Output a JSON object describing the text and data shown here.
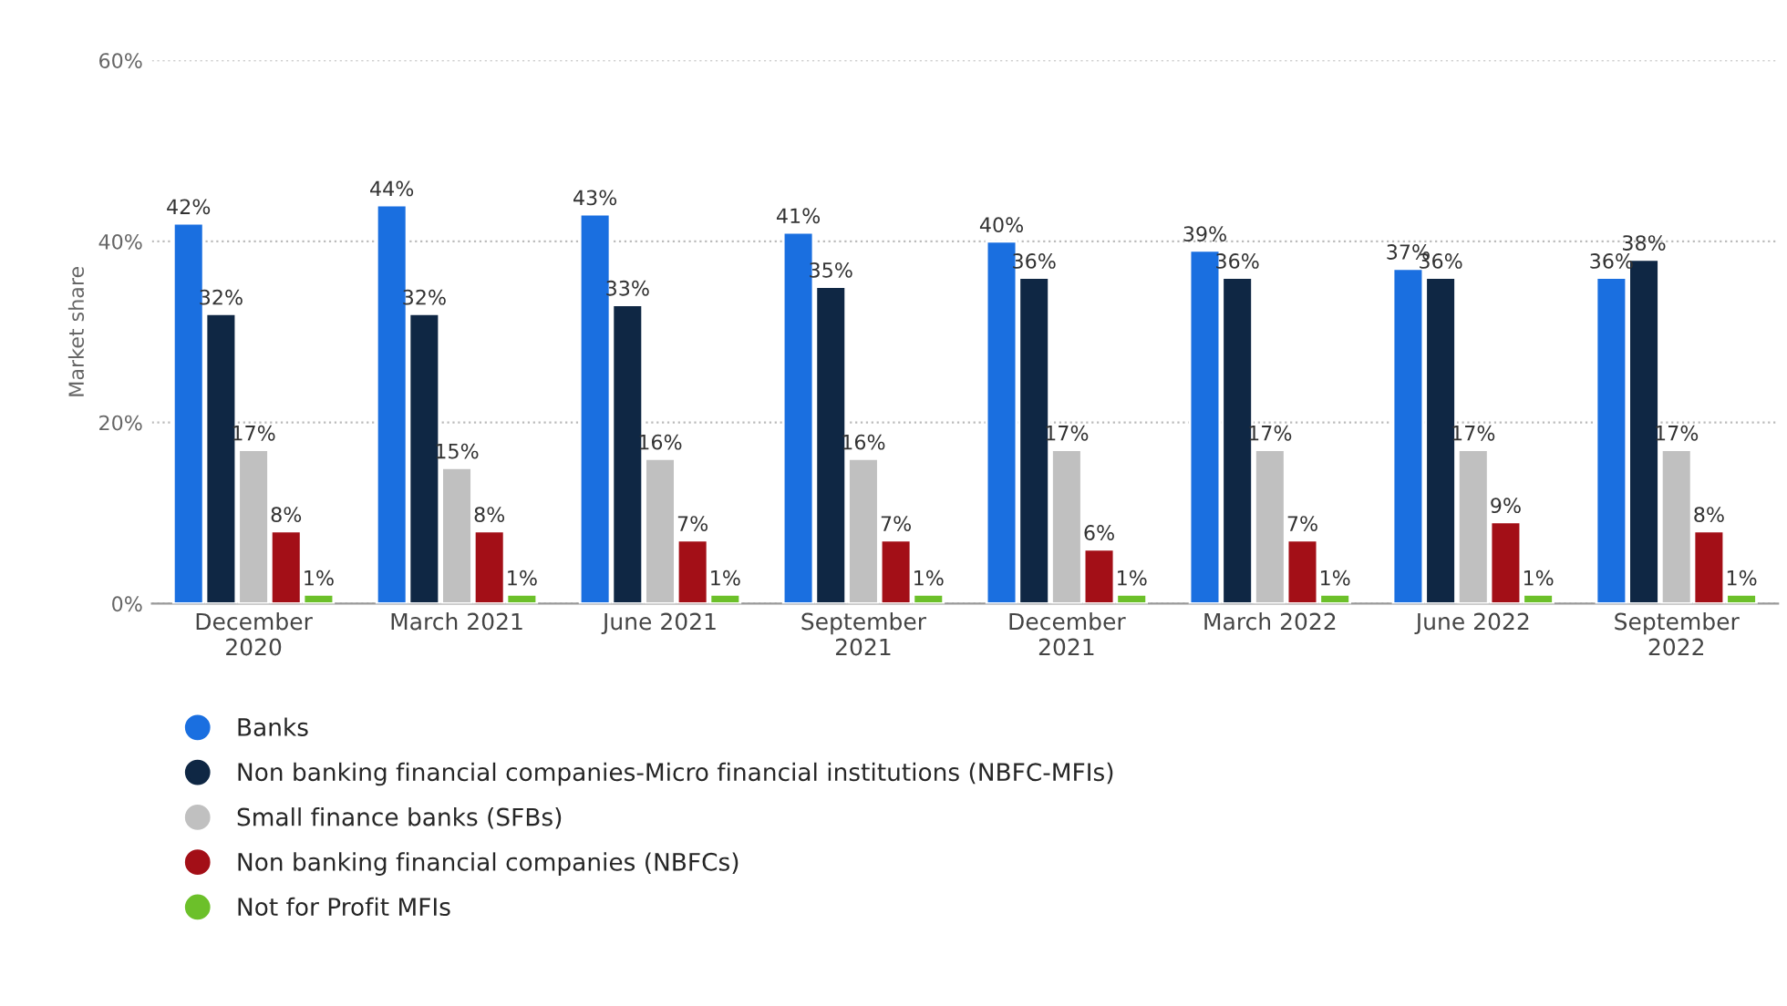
{
  "chart_data": {
    "type": "bar",
    "categories": [
      "December\n2020",
      "March 2021",
      "June 2021",
      "September\n2021",
      "December\n2021",
      "March 2022",
      "June 2022",
      "September\n2022"
    ],
    "ylabel": "Market share",
    "ylim": [
      0,
      60
    ],
    "yticks": [
      {
        "value": 0,
        "label": "0%"
      },
      {
        "value": 20,
        "label": "20%"
      },
      {
        "value": 40,
        "label": "40%"
      },
      {
        "value": 60,
        "label": "60%"
      }
    ],
    "grid": "y",
    "legend": "bottom left",
    "series": [
      {
        "name": "Banks",
        "color": "#1a6fe0",
        "values": [
          42,
          44,
          43,
          41,
          40,
          39,
          37,
          36
        ],
        "value_labels": [
          "42%",
          "44%",
          "43%",
          "41%",
          "40%",
          "39%",
          "37%",
          "36%"
        ]
      },
      {
        "name": "Non banking financial companies-Micro financial institutions (NBFC-MFIs)",
        "color": "#0f2744",
        "values": [
          32,
          32,
          33,
          35,
          36,
          36,
          36,
          38
        ],
        "value_labels": [
          "32%",
          "32%",
          "33%",
          "35%",
          "36%",
          "36%",
          "36%",
          "38%"
        ]
      },
      {
        "name": "Small finance banks (SFBs)",
        "color": "#c0c0c0",
        "values": [
          17,
          15,
          16,
          16,
          17,
          17,
          17,
          17
        ],
        "value_labels": [
          "17%",
          "15%",
          "16%",
          "16%",
          "17%",
          "17%",
          "17%",
          "17%"
        ]
      },
      {
        "name": "Non banking financial companies (NBFCs)",
        "color": "#a30f17",
        "values": [
          8,
          8,
          7,
          7,
          6,
          7,
          9,
          8
        ],
        "value_labels": [
          "8%",
          "8%",
          "7%",
          "7%",
          "6%",
          "7%",
          "9%",
          "8%"
        ]
      },
      {
        "name": "Not for Profit MFIs",
        "color": "#6cc02a",
        "values": [
          1,
          1,
          1,
          1,
          1,
          1,
          1,
          1
        ],
        "value_labels": [
          "1%",
          "1%",
          "1%",
          "1%",
          "1%",
          "1%",
          "1%",
          "1%"
        ]
      }
    ]
  }
}
